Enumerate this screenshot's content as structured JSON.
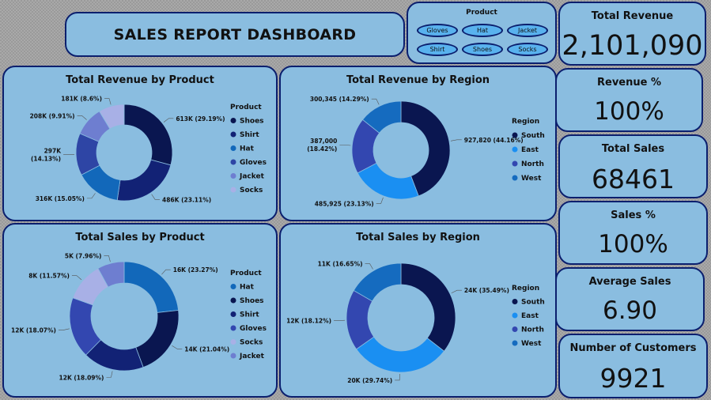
{
  "dashboard": {
    "title": "SALES REPORT DASHBOARD"
  },
  "slicer": {
    "title": "Product",
    "options": [
      "Gloves",
      "Hat",
      "Jacket",
      "Shirt",
      "Shoes",
      "Socks"
    ]
  },
  "kpis": [
    {
      "label": "Total Revenue",
      "value": "2,101,090"
    },
    {
      "label": "Revenue %",
      "value": "100%"
    },
    {
      "label": "Total Sales",
      "value": "68461"
    },
    {
      "label": "Sales %",
      "value": "100%"
    },
    {
      "label": "Average Sales",
      "value": "6.90"
    },
    {
      "label": "Number of Customers",
      "value": "9921"
    }
  ],
  "chart_data": [
    {
      "type": "pie",
      "donut": true,
      "title": "Total Revenue by Product",
      "legend_title": "Product",
      "legend_position": "right",
      "categories": [
        "Shoes",
        "Shirt",
        "Hat",
        "Gloves",
        "Jacket",
        "Socks"
      ],
      "values": [
        613000,
        486000,
        316000,
        297000,
        208000,
        181000
      ],
      "labels": [
        "613K (29.19%)",
        "486K (23.11%)",
        "316K (15.05%)",
        "297K (14.13%)",
        "208K (9.91%)",
        "181K (8.6%)"
      ],
      "colors": [
        "#0a1650",
        "#122275",
        "#1268ba",
        "#2e45a5",
        "#6e7ed0",
        "#a8b0e6"
      ]
    },
    {
      "type": "pie",
      "donut": true,
      "title": "Total Revenue by Region",
      "legend_title": "Region",
      "legend_position": "right",
      "categories": [
        "South",
        "East",
        "North",
        "West"
      ],
      "values": [
        927820,
        485925,
        387000,
        300345
      ],
      "labels": [
        "927,820 (44.16%)",
        "485,925 (23.13%)",
        "387,000 (18.42%)",
        "300,345 (14.29%)"
      ],
      "colors": [
        "#0a1650",
        "#1a8ff2",
        "#3347b0",
        "#156bbf"
      ]
    },
    {
      "type": "pie",
      "donut": true,
      "title": "Total Sales by Product",
      "legend_title": "Product",
      "legend_position": "right",
      "categories": [
        "Hat",
        "Shoes",
        "Shirt",
        "Gloves",
        "Socks",
        "Jacket"
      ],
      "values": [
        16000,
        14000,
        12000,
        12000,
        8000,
        5000
      ],
      "labels": [
        "16K (23.27%)",
        "14K (21.04%)",
        "12K (18.09%)",
        "12K (18.07%)",
        "8K (11.57%)",
        "5K (7.96%)"
      ],
      "percents": [
        23.27,
        21.04,
        18.09,
        18.07,
        11.57,
        7.96
      ],
      "colors": [
        "#1268ba",
        "#0a1650",
        "#122275",
        "#3347b0",
        "#a8b0e6",
        "#6e7ed0"
      ]
    },
    {
      "type": "pie",
      "donut": true,
      "title": "Total Sales by Region",
      "legend_title": "Region",
      "legend_position": "right",
      "categories": [
        "South",
        "East",
        "North",
        "West"
      ],
      "values": [
        24000,
        20000,
        12000,
        11000
      ],
      "labels": [
        "24K (35.49%)",
        "20K (29.74%)",
        "12K (18.12%)",
        "11K (16.65%)"
      ],
      "percents": [
        35.49,
        29.74,
        18.12,
        16.65
      ],
      "colors": [
        "#0a1650",
        "#1a8ff2",
        "#3347b0",
        "#156bbf"
      ]
    }
  ]
}
